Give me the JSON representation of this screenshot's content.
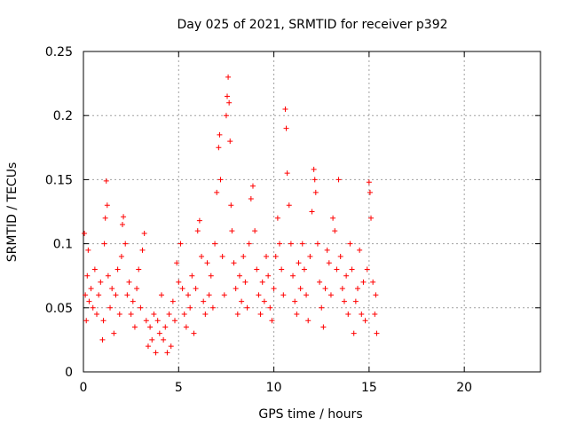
{
  "chart_data": {
    "type": "scatter",
    "title": "Day 025 of 2021, SRMTID for receiver p392",
    "xlabel": "GPS time / hours",
    "ylabel": "SRMTID / TECUs",
    "xlim": [
      0,
      24
    ],
    "ylim": [
      0,
      0.25
    ],
    "x_ticks": [
      0,
      5,
      10,
      15,
      20
    ],
    "y_ticks": [
      0,
      0.05,
      0.1,
      0.15,
      0.2,
      0.25
    ],
    "x_tick_labels": [
      "0",
      "5",
      "10",
      "15",
      "20"
    ],
    "y_tick_labels": [
      "0",
      "0.05",
      "0.1",
      "0.15",
      "0.2",
      "0.25"
    ],
    "grid": true,
    "marker": "+",
    "color": "#ff0000",
    "series": [
      {
        "name": "SRMTID",
        "points": [
          [
            0.05,
            0.108
          ],
          [
            0.1,
            0.06
          ],
          [
            0.15,
            0.04
          ],
          [
            0.2,
            0.075
          ],
          [
            0.25,
            0.095
          ],
          [
            0.3,
            0.055
          ],
          [
            0.4,
            0.065
          ],
          [
            0.5,
            0.05
          ],
          [
            0.6,
            0.08
          ],
          [
            0.7,
            0.045
          ],
          [
            0.8,
            0.06
          ],
          [
            0.9,
            0.07
          ],
          [
            1.0,
            0.025
          ],
          [
            1.05,
            0.04
          ],
          [
            1.1,
            0.1
          ],
          [
            1.15,
            0.12
          ],
          [
            1.2,
            0.149
          ],
          [
            1.25,
            0.13
          ],
          [
            1.3,
            0.075
          ],
          [
            1.4,
            0.05
          ],
          [
            1.5,
            0.065
          ],
          [
            1.6,
            0.03
          ],
          [
            1.7,
            0.06
          ],
          [
            1.8,
            0.08
          ],
          [
            1.9,
            0.045
          ],
          [
            2.0,
            0.09
          ],
          [
            2.05,
            0.115
          ],
          [
            2.1,
            0.121
          ],
          [
            2.2,
            0.1
          ],
          [
            2.3,
            0.06
          ],
          [
            2.4,
            0.07
          ],
          [
            2.5,
            0.045
          ],
          [
            2.6,
            0.055
          ],
          [
            2.7,
            0.035
          ],
          [
            2.8,
            0.065
          ],
          [
            2.9,
            0.08
          ],
          [
            3.0,
            0.05
          ],
          [
            3.1,
            0.095
          ],
          [
            3.2,
            0.108
          ],
          [
            3.3,
            0.04
          ],
          [
            3.4,
            0.02
          ],
          [
            3.5,
            0.035
          ],
          [
            3.6,
            0.025
          ],
          [
            3.7,
            0.045
          ],
          [
            3.8,
            0.015
          ],
          [
            3.9,
            0.04
          ],
          [
            4.0,
            0.03
          ],
          [
            4.1,
            0.06
          ],
          [
            4.2,
            0.025
          ],
          [
            4.3,
            0.035
          ],
          [
            4.4,
            0.015
          ],
          [
            4.5,
            0.045
          ],
          [
            4.6,
            0.02
          ],
          [
            4.7,
            0.055
          ],
          [
            4.8,
            0.04
          ],
          [
            4.9,
            0.085
          ],
          [
            5.0,
            0.07
          ],
          [
            5.1,
            0.1
          ],
          [
            5.2,
            0.065
          ],
          [
            5.3,
            0.045
          ],
          [
            5.4,
            0.035
          ],
          [
            5.5,
            0.06
          ],
          [
            5.6,
            0.05
          ],
          [
            5.7,
            0.075
          ],
          [
            5.8,
            0.03
          ],
          [
            5.9,
            0.065
          ],
          [
            6.0,
            0.11
          ],
          [
            6.1,
            0.118
          ],
          [
            6.2,
            0.09
          ],
          [
            6.3,
            0.055
          ],
          [
            6.4,
            0.045
          ],
          [
            6.5,
            0.085
          ],
          [
            6.6,
            0.06
          ],
          [
            6.7,
            0.075
          ],
          [
            6.8,
            0.05
          ],
          [
            6.9,
            0.1
          ],
          [
            7.0,
            0.14
          ],
          [
            7.1,
            0.175
          ],
          [
            7.15,
            0.185
          ],
          [
            7.2,
            0.15
          ],
          [
            7.3,
            0.09
          ],
          [
            7.4,
            0.06
          ],
          [
            7.5,
            0.2
          ],
          [
            7.55,
            0.215
          ],
          [
            7.6,
            0.23
          ],
          [
            7.65,
            0.21
          ],
          [
            7.7,
            0.18
          ],
          [
            7.75,
            0.13
          ],
          [
            7.8,
            0.11
          ],
          [
            7.9,
            0.085
          ],
          [
            8.0,
            0.065
          ],
          [
            8.1,
            0.045
          ],
          [
            8.2,
            0.075
          ],
          [
            8.3,
            0.055
          ],
          [
            8.4,
            0.09
          ],
          [
            8.5,
            0.07
          ],
          [
            8.6,
            0.05
          ],
          [
            8.7,
            0.1
          ],
          [
            8.8,
            0.135
          ],
          [
            8.9,
            0.145
          ],
          [
            9.0,
            0.11
          ],
          [
            9.1,
            0.08
          ],
          [
            9.2,
            0.06
          ],
          [
            9.3,
            0.045
          ],
          [
            9.4,
            0.07
          ],
          [
            9.5,
            0.055
          ],
          [
            9.6,
            0.09
          ],
          [
            9.7,
            0.075
          ],
          [
            9.8,
            0.05
          ],
          [
            9.9,
            0.04
          ],
          [
            10.0,
            0.065
          ],
          [
            10.1,
            0.09
          ],
          [
            10.2,
            0.12
          ],
          [
            10.3,
            0.1
          ],
          [
            10.4,
            0.08
          ],
          [
            10.5,
            0.06
          ],
          [
            10.6,
            0.205
          ],
          [
            10.65,
            0.19
          ],
          [
            10.7,
            0.155
          ],
          [
            10.8,
            0.13
          ],
          [
            10.9,
            0.1
          ],
          [
            11.0,
            0.075
          ],
          [
            11.1,
            0.055
          ],
          [
            11.2,
            0.045
          ],
          [
            11.3,
            0.085
          ],
          [
            11.4,
            0.065
          ],
          [
            11.5,
            0.1
          ],
          [
            11.6,
            0.08
          ],
          [
            11.7,
            0.06
          ],
          [
            11.8,
            0.04
          ],
          [
            11.9,
            0.09
          ],
          [
            12.0,
            0.125
          ],
          [
            12.1,
            0.158
          ],
          [
            12.15,
            0.15
          ],
          [
            12.2,
            0.14
          ],
          [
            12.3,
            0.1
          ],
          [
            12.4,
            0.07
          ],
          [
            12.5,
            0.05
          ],
          [
            12.6,
            0.035
          ],
          [
            12.7,
            0.065
          ],
          [
            12.8,
            0.095
          ],
          [
            12.9,
            0.085
          ],
          [
            13.0,
            0.06
          ],
          [
            13.1,
            0.12
          ],
          [
            13.2,
            0.11
          ],
          [
            13.3,
            0.08
          ],
          [
            13.4,
            0.15
          ],
          [
            13.5,
            0.09
          ],
          [
            13.6,
            0.065
          ],
          [
            13.7,
            0.055
          ],
          [
            13.8,
            0.075
          ],
          [
            13.9,
            0.045
          ],
          [
            14.0,
            0.1
          ],
          [
            14.1,
            0.08
          ],
          [
            14.2,
            0.03
          ],
          [
            14.3,
            0.055
          ],
          [
            14.4,
            0.065
          ],
          [
            14.5,
            0.095
          ],
          [
            14.6,
            0.045
          ],
          [
            14.7,
            0.07
          ],
          [
            14.8,
            0.04
          ],
          [
            14.9,
            0.08
          ],
          [
            15.0,
            0.148
          ],
          [
            15.05,
            0.14
          ],
          [
            15.1,
            0.12
          ],
          [
            15.2,
            0.07
          ],
          [
            15.3,
            0.045
          ],
          [
            15.35,
            0.06
          ],
          [
            15.4,
            0.03
          ]
        ]
      }
    ]
  }
}
